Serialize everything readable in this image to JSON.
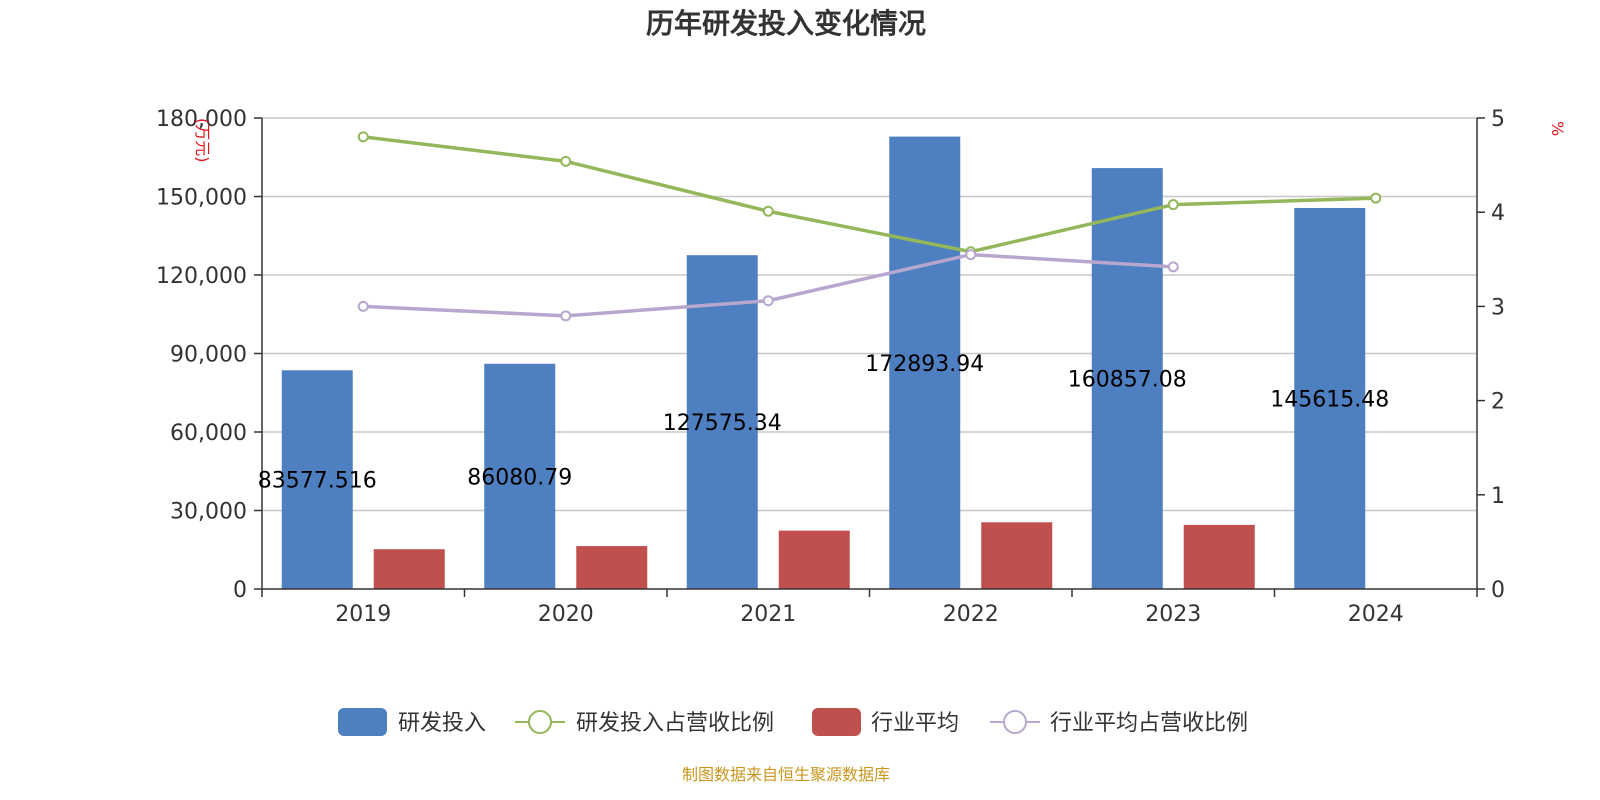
{
  "chart_data": {
    "type": "bar",
    "title": "历年研发投入变化情况",
    "categories": [
      "2019",
      "2020",
      "2021",
      "2022",
      "2023",
      "2024"
    ],
    "y_left": {
      "unit": "(万元)",
      "min": 0,
      "max": 180000,
      "ticks": [
        0,
        30000,
        60000,
        90000,
        120000,
        150000,
        180000
      ],
      "tick_labels": [
        "0",
        "30,000",
        "60,000",
        "90,000",
        "120,000",
        "150,000",
        "180,000"
      ]
    },
    "y_right": {
      "unit": "%",
      "min": 0,
      "max": 5,
      "ticks": [
        0,
        1,
        2,
        3,
        4,
        5
      ],
      "tick_labels": [
        "0",
        "1",
        "2",
        "3",
        "4",
        "5"
      ]
    },
    "grid": true,
    "legend_position": "bottom",
    "series": [
      {
        "name": "研发投入",
        "type": "bar",
        "axis": "left",
        "color": "#4e7fc0",
        "values": [
          83577.516,
          86080.79,
          127575.34,
          172893.94,
          160857.08,
          145615.48
        ],
        "labels": [
          "83577.516",
          "86080.79",
          "127575.34",
          "172893.94",
          "160857.08",
          "145615.48"
        ]
      },
      {
        "name": "研发投入占营收比例",
        "type": "line",
        "axis": "right",
        "color": "#93b75a",
        "values": [
          4.8,
          4.54,
          4.01,
          3.58,
          4.08,
          4.15
        ]
      },
      {
        "name": "行业平均",
        "type": "bar",
        "axis": "left",
        "color": "#c0504d",
        "values": [
          15200,
          16400,
          22300,
          25500,
          24500,
          null
        ]
      },
      {
        "name": "行业平均占营收比例",
        "type": "line",
        "axis": "right",
        "color": "#b7a7cf",
        "values": [
          3.0,
          2.9,
          3.06,
          3.55,
          3.42,
          null
        ]
      }
    ]
  },
  "source_text": "制图数据来自恒生聚源数据库"
}
